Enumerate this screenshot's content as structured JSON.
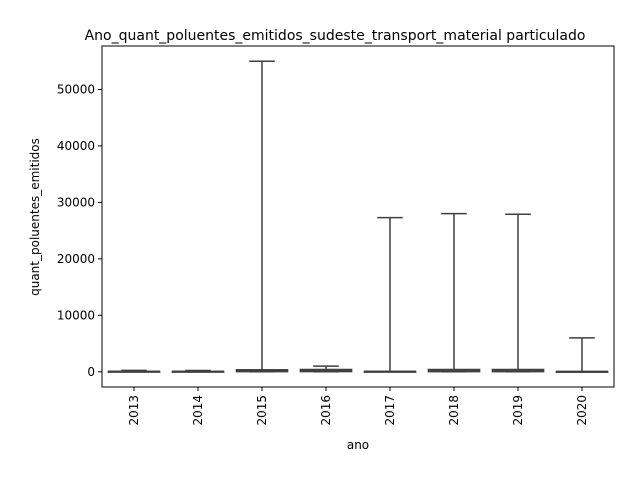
{
  "chart_data": {
    "type": "box",
    "title": "Ano_quant_poluentes_emitidos_sudeste_transport_material particulado",
    "xlabel": "ano",
    "ylabel": "quant_poluentes_emitidos",
    "categories": [
      "2013",
      "2014",
      "2015",
      "2016",
      "2017",
      "2018",
      "2019",
      "2020"
    ],
    "ylim": [
      -2700,
      57700
    ],
    "yticks": [
      0,
      10000,
      20000,
      30000,
      40000,
      50000
    ],
    "ytick_labels": [
      "0",
      "10000",
      "20000",
      "30000",
      "40000",
      "50000"
    ],
    "boxes": [
      {
        "category": "2013",
        "min": 0,
        "q1": 10,
        "median": 40,
        "q3": 80,
        "max": 250
      },
      {
        "category": "2014",
        "min": 0,
        "q1": 10,
        "median": 40,
        "q3": 80,
        "max": 230
      },
      {
        "category": "2015",
        "min": 0,
        "q1": 20,
        "median": 100,
        "q3": 350,
        "max": 55000
      },
      {
        "category": "2016",
        "min": 0,
        "q1": 30,
        "median": 150,
        "q3": 400,
        "max": 1000
      },
      {
        "category": "2017",
        "min": 0,
        "q1": 5,
        "median": 30,
        "q3": 80,
        "max": 27300
      },
      {
        "category": "2018",
        "min": 0,
        "q1": 20,
        "median": 120,
        "q3": 400,
        "max": 28000
      },
      {
        "category": "2019",
        "min": 0,
        "q1": 20,
        "median": 120,
        "q3": 400,
        "max": 27900
      },
      {
        "category": "2020",
        "min": 0,
        "q1": 5,
        "median": 30,
        "q3": 60,
        "max": 6000
      }
    ],
    "grid": false,
    "color": "#3f3f3f"
  }
}
